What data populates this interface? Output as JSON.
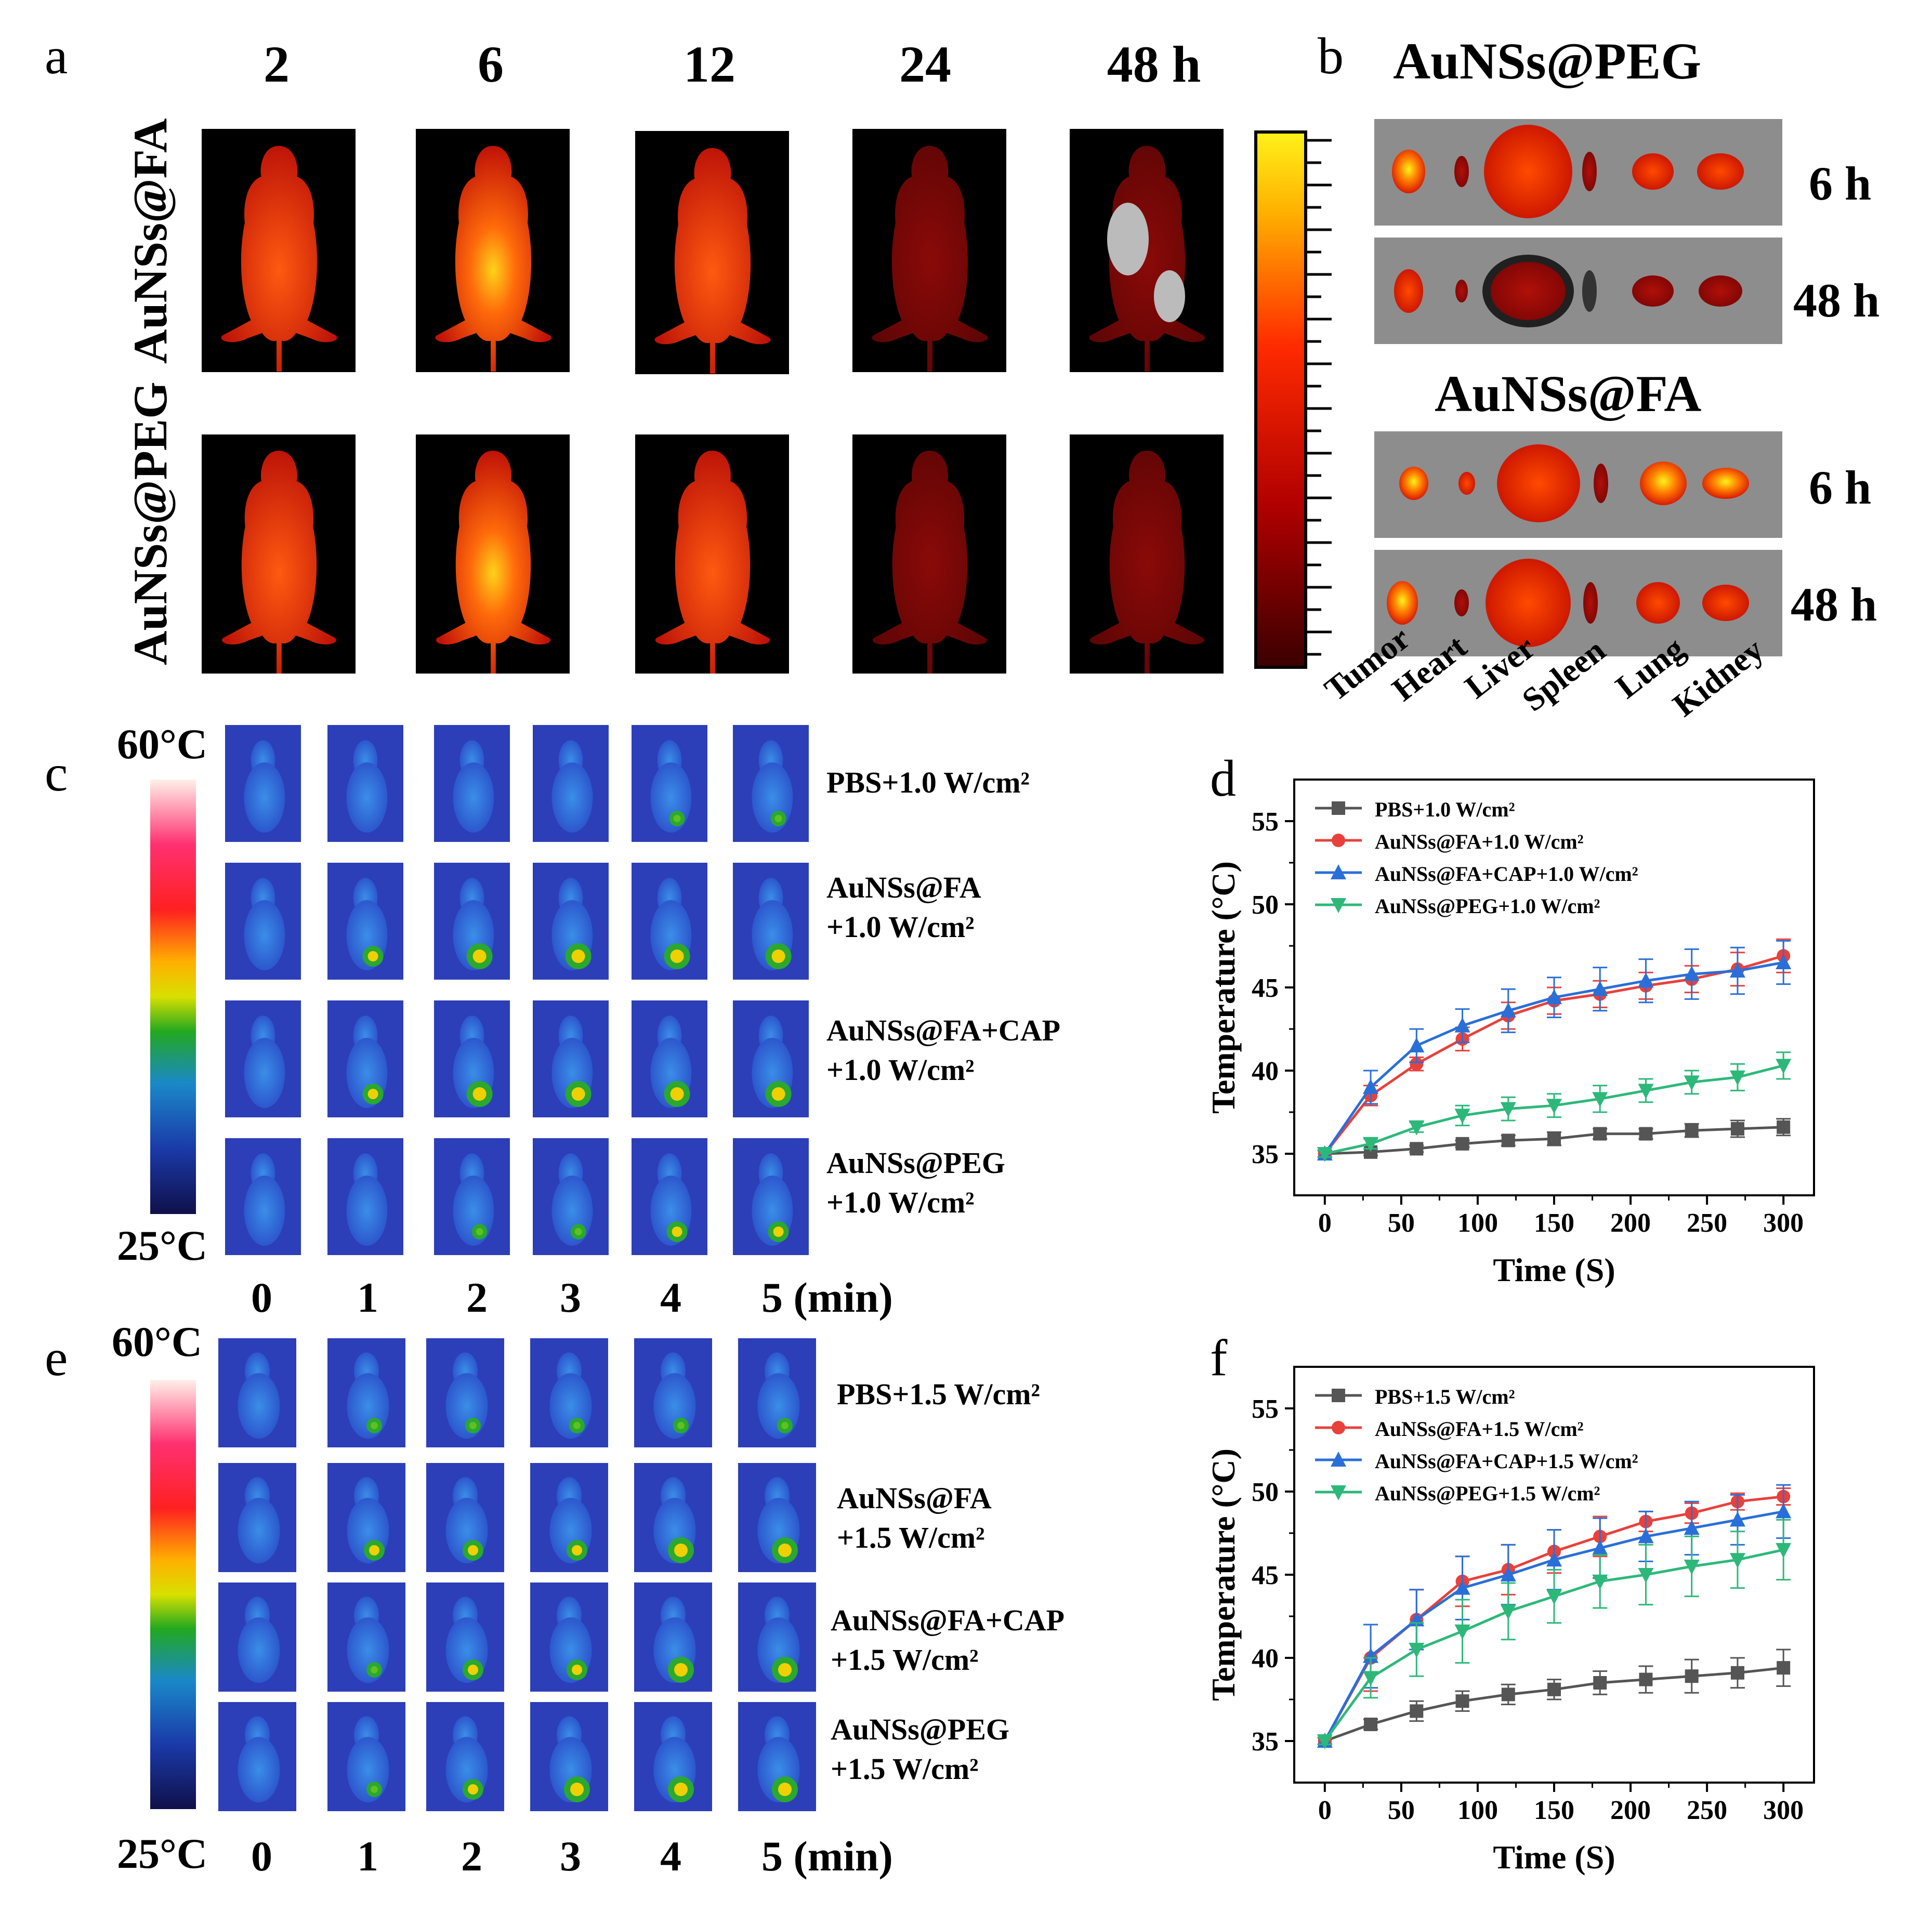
{
  "panel_a": {
    "label": "a",
    "times": [
      "2",
      "6",
      "12",
      "24",
      "48 h"
    ],
    "rows": [
      "AuNSs@FA",
      "AuNSs@PEG"
    ]
  },
  "panel_b": {
    "label": "b",
    "groups": [
      {
        "title": "AuNSs@PEG",
        "strips": [
          "6 h",
          "48 h"
        ]
      },
      {
        "title": "AuNSs@FA",
        "strips": [
          "6 h",
          "48 h"
        ]
      }
    ],
    "organs": [
      "Tumor",
      "Heart",
      "Liver",
      "Spleen",
      "Lung",
      "Kidney"
    ]
  },
  "panel_c": {
    "label": "c",
    "scale_max": "60°C",
    "scale_min": "25°C",
    "groups": [
      {
        "line1": "PBS+1.0 W/cm²",
        "line2": ""
      },
      {
        "line1": "AuNSs@FA",
        "line2": "+1.0 W/cm²"
      },
      {
        "line1": "AuNSs@FA+CAP",
        "line2": "+1.0 W/cm²"
      },
      {
        "line1": "AuNSs@PEG",
        "line2": "+1.0 W/cm²"
      }
    ],
    "minutes": [
      "0",
      "1",
      "2",
      "3",
      "4",
      "5 (min)"
    ]
  },
  "panel_e": {
    "label": "e",
    "scale_max": "60°C",
    "scale_min": "25°C",
    "groups": [
      {
        "line1": "PBS+1.5 W/cm²",
        "line2": ""
      },
      {
        "line1": "AuNSs@FA",
        "line2": "+1.5 W/cm²"
      },
      {
        "line1": "AuNSs@FA+CAP",
        "line2": "+1.5 W/cm²"
      },
      {
        "line1": "AuNSs@PEG",
        "line2": "+1.5 W/cm²"
      }
    ],
    "minutes": [
      "0",
      "1",
      "2",
      "3",
      "4",
      "5 (min)"
    ]
  },
  "chart_data": [
    {
      "panel": "d",
      "type": "line",
      "xlabel": "Time (S)",
      "ylabel": "Temperature (°C)",
      "xlim": [
        -20,
        320
      ],
      "ylim": [
        32.5,
        57.5
      ],
      "xticks": [
        0,
        50,
        100,
        150,
        200,
        250,
        300
      ],
      "yticks": [
        35,
        40,
        45,
        50,
        55
      ],
      "legend": "top-left",
      "x": [
        0,
        30,
        60,
        90,
        120,
        150,
        180,
        210,
        240,
        270,
        300
      ],
      "series": [
        {
          "name": "PBS+1.0 W/cm²",
          "color": "#555555",
          "marker": "square",
          "values": [
            35.0,
            35.1,
            35.3,
            35.6,
            35.8,
            35.9,
            36.2,
            36.2,
            36.4,
            36.5,
            36.6
          ],
          "errors": [
            0.2,
            0.2,
            0.2,
            0.2,
            0.3,
            0.4,
            0.3,
            0.3,
            0.4,
            0.5,
            0.5
          ]
        },
        {
          "name": "AuNSs@FA+1.0 W/cm²",
          "color": "#e8413c",
          "marker": "circle",
          "values": [
            35.0,
            38.5,
            40.4,
            41.9,
            43.3,
            44.2,
            44.6,
            45.1,
            45.5,
            46.1,
            46.9
          ],
          "errors": [
            0.2,
            0.6,
            0.4,
            0.7,
            0.8,
            0.8,
            0.8,
            0.8,
            0.8,
            1.0,
            1.0
          ]
        },
        {
          "name": "AuNSs@FA+CAP+1.0 W/cm²",
          "color": "#2a6fd8",
          "marker": "triangle-up",
          "values": [
            35.0,
            39.0,
            41.5,
            42.7,
            43.6,
            44.4,
            44.9,
            45.4,
            45.8,
            46.0,
            46.5
          ],
          "errors": [
            0.2,
            1.0,
            1.0,
            1.0,
            1.3,
            1.2,
            1.3,
            1.3,
            1.5,
            1.4,
            1.3
          ]
        },
        {
          "name": "AuNSs@PEG+1.0 W/cm²",
          "color": "#2db87a",
          "marker": "triangle-down",
          "values": [
            35.0,
            35.6,
            36.6,
            37.3,
            37.7,
            37.9,
            38.3,
            38.8,
            39.3,
            39.6,
            40.3
          ],
          "errors": [
            0.2,
            0.3,
            0.3,
            0.6,
            0.7,
            0.7,
            0.8,
            0.7,
            0.7,
            0.8,
            0.8
          ]
        }
      ]
    },
    {
      "panel": "f",
      "type": "line",
      "xlabel": "Time (S)",
      "ylabel": "Temperature (°C)",
      "xlim": [
        -20,
        320
      ],
      "ylim": [
        32.5,
        57.5
      ],
      "xticks": [
        0,
        50,
        100,
        150,
        200,
        250,
        300
      ],
      "yticks": [
        35,
        40,
        45,
        50,
        55
      ],
      "legend": "top-left",
      "x": [
        0,
        30,
        60,
        90,
        120,
        150,
        180,
        210,
        240,
        270,
        300
      ],
      "series": [
        {
          "name": "PBS+1.5 W/cm²",
          "color": "#555555",
          "marker": "square",
          "values": [
            35.0,
            36.0,
            36.8,
            37.4,
            37.8,
            38.1,
            38.5,
            38.7,
            38.9,
            39.1,
            39.4
          ],
          "errors": [
            0.2,
            0.3,
            0.6,
            0.6,
            0.6,
            0.6,
            0.7,
            0.8,
            1.0,
            0.9,
            1.1
          ]
        },
        {
          "name": "AuNSs@FA+1.5 W/cm²",
          "color": "#e8413c",
          "marker": "circle",
          "values": [
            35.0,
            40.0,
            42.3,
            44.6,
            45.3,
            46.4,
            47.3,
            48.2,
            48.7,
            49.4,
            49.7
          ],
          "errors": [
            0.2,
            2.0,
            1.8,
            1.5,
            1.5,
            1.3,
            1.2,
            0.6,
            0.6,
            0.5,
            0.5
          ]
        },
        {
          "name": "AuNSs@FA+CAP+1.5 W/cm²",
          "color": "#2a6fd8",
          "marker": "triangle-up",
          "values": [
            35.0,
            40.1,
            42.3,
            44.2,
            45.0,
            45.9,
            46.6,
            47.3,
            47.8,
            48.3,
            48.8
          ],
          "errors": [
            0.2,
            1.9,
            1.8,
            1.9,
            1.8,
            1.8,
            1.8,
            1.5,
            1.6,
            1.5,
            1.6
          ]
        },
        {
          "name": "AuNSs@PEG+1.5 W/cm²",
          "color": "#2db87a",
          "marker": "triangle-down",
          "values": [
            35.0,
            38.8,
            40.5,
            41.6,
            42.8,
            43.7,
            44.6,
            45.0,
            45.5,
            45.9,
            46.5
          ],
          "errors": [
            0.2,
            1.2,
            1.6,
            1.9,
            1.7,
            1.6,
            1.6,
            1.8,
            1.8,
            1.7,
            1.8
          ]
        }
      ]
    }
  ]
}
